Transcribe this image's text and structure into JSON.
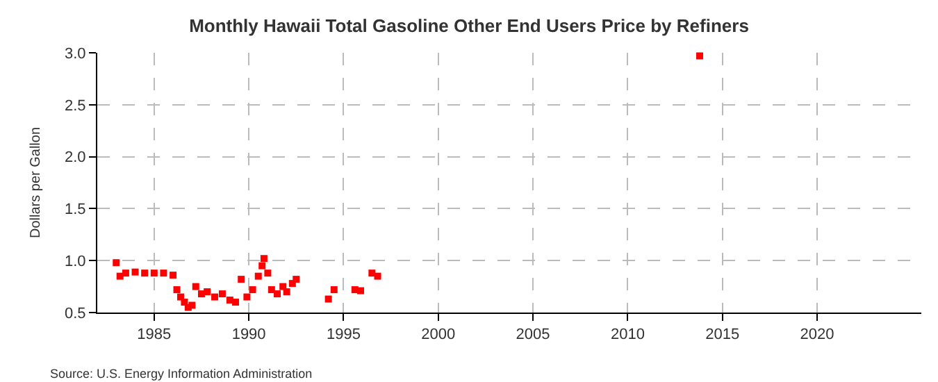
{
  "chart_data": {
    "type": "scatter",
    "title": "Monthly Hawaii Total Gasoline Other End Users Price by Refiners",
    "ylabel": "Dollars per Gallon",
    "x": [
      1983.0,
      1983.2,
      1983.5,
      1984.0,
      1984.5,
      1985.0,
      1985.5,
      1986.0,
      1986.2,
      1986.4,
      1986.6,
      1986.8,
      1987.0,
      1987.2,
      1987.5,
      1987.8,
      1988.2,
      1988.6,
      1989.0,
      1989.3,
      1989.6,
      1989.9,
      1990.2,
      1990.5,
      1990.7,
      1990.8,
      1991.0,
      1991.2,
      1991.5,
      1991.8,
      1992.0,
      1992.3,
      1992.5,
      1994.2,
      1994.5,
      1995.6,
      1995.9,
      1996.5,
      1996.8,
      2013.8
    ],
    "series": [
      {
        "color": "#ff0000",
        "values": [
          0.98,
          0.85,
          0.88,
          0.89,
          0.88,
          0.88,
          0.88,
          0.86,
          0.72,
          0.65,
          0.6,
          0.55,
          0.57,
          0.75,
          0.68,
          0.7,
          0.65,
          0.68,
          0.62,
          0.6,
          0.82,
          0.65,
          0.72,
          0.85,
          0.95,
          1.02,
          0.88,
          0.72,
          0.68,
          0.75,
          0.7,
          0.78,
          0.82,
          0.63,
          0.72,
          0.72,
          0.71,
          0.88,
          0.85,
          2.97
        ]
      }
    ],
    "xlim": [
      1982,
      2025.5
    ],
    "xticks": [
      1985,
      1990,
      1995,
      2000,
      2005,
      2010,
      2015,
      2020
    ],
    "ylim": [
      0.5,
      3.0
    ],
    "yticks": [
      {
        "value": 0.5,
        "label": "0.5"
      },
      {
        "value": 1.0,
        "label": "1.0"
      },
      {
        "value": 1.5,
        "label": "1.5"
      },
      {
        "value": 2.0,
        "label": "2.0"
      },
      {
        "value": 2.5,
        "label": "2.5"
      },
      {
        "value": 3.0,
        "label": "3.0"
      }
    ],
    "grid": true,
    "marker": "square",
    "annotations": [
      "Source: U.S. Energy Information Administration"
    ]
  }
}
